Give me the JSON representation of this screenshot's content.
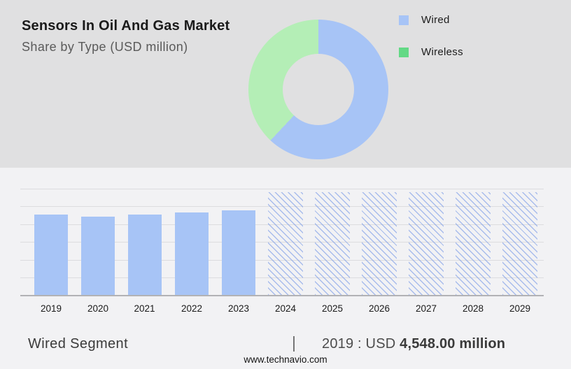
{
  "header": {
    "title": "Sensors In Oil And Gas Market",
    "subtitle": "Share by Type (USD million)"
  },
  "legend": {
    "items": [
      {
        "label": "Wired",
        "color": "#a7c4f6"
      },
      {
        "label": "Wireless",
        "color": "#63d985"
      }
    ]
  },
  "chart_data": [
    {
      "type": "pie",
      "donut": true,
      "title": "Share by Type (USD million)",
      "labels": [
        "Wired",
        "Wireless"
      ],
      "values_pct": [
        62,
        38
      ],
      "colors": [
        "#a7c4f6",
        "#b4eeb6"
      ],
      "legend_position": "right"
    },
    {
      "type": "bar",
      "title": "Wired Segment (USD million)",
      "categories": [
        "2019",
        "2020",
        "2021",
        "2022",
        "2023",
        "2024",
        "2025",
        "2026",
        "2027",
        "2028",
        "2029"
      ],
      "series": [
        {
          "name": "Wired",
          "values": [
            4548,
            4430,
            4548,
            4665,
            4780,
            null,
            null,
            null,
            null,
            null,
            null
          ]
        }
      ],
      "bar_color": "#a7c4f6",
      "forecast_hatched_years": [
        "2024",
        "2025",
        "2026",
        "2027",
        "2028",
        "2029"
      ],
      "grid": true,
      "ylim": [
        0,
        6000
      ],
      "labeled_point": {
        "year": "2019",
        "value": 4548.0,
        "unit": "USD million"
      }
    }
  ],
  "footer": {
    "segment_label": "Wired Segment",
    "separator": "|",
    "metric_prefix": "2019 : USD ",
    "metric_value": "4,548.00 million",
    "website": "www.technavio.com"
  }
}
